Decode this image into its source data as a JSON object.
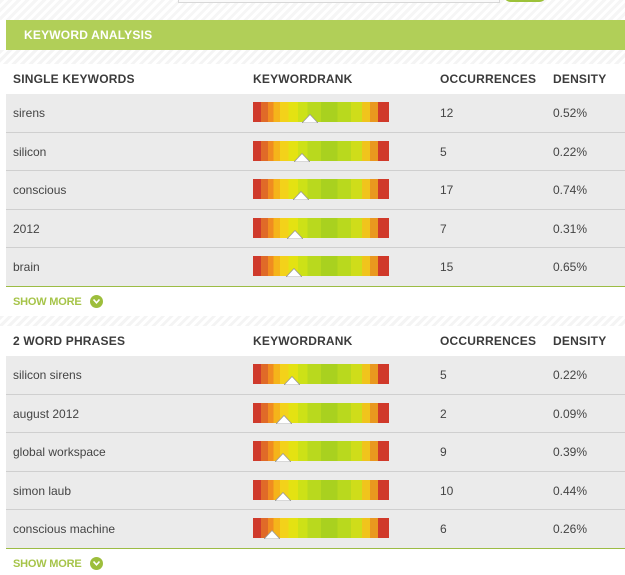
{
  "header": {
    "title": "KEYWORD ANALYSIS"
  },
  "colors": {
    "accent": "#b1cf58",
    "show_more": "#a6c449",
    "row_bg": "#ebebeb"
  },
  "sections": [
    {
      "columns": [
        "SINGLE KEYWORDS",
        "KEYWORDRANK",
        "OCCURRENCES",
        "DENSITY"
      ],
      "rows": [
        {
          "keyword": "sirens",
          "rank": 0.42,
          "occurrences": "12",
          "density": "0.52%"
        },
        {
          "keyword": "silicon",
          "rank": 0.36,
          "occurrences": "5",
          "density": "0.22%"
        },
        {
          "keyword": "conscious",
          "rank": 0.35,
          "occurrences": "17",
          "density": "0.74%"
        },
        {
          "keyword": "2012",
          "rank": 0.31,
          "occurrences": "7",
          "density": "0.31%"
        },
        {
          "keyword": "brain",
          "rank": 0.3,
          "occurrences": "15",
          "density": "0.65%"
        }
      ],
      "show_more": "SHOW MORE",
      "show_more_icon": "chevron-down-icon"
    },
    {
      "columns": [
        "2 WORD PHRASES",
        "KEYWORDRANK",
        "OCCURRENCES",
        "DENSITY"
      ],
      "rows": [
        {
          "keyword": "silicon sirens",
          "rank": 0.29,
          "occurrences": "5",
          "density": "0.22%"
        },
        {
          "keyword": "august 2012",
          "rank": 0.23,
          "occurrences": "2",
          "density": "0.09%"
        },
        {
          "keyword": "global workspace",
          "rank": 0.22,
          "occurrences": "9",
          "density": "0.39%"
        },
        {
          "keyword": "simon laub",
          "rank": 0.22,
          "occurrences": "10",
          "density": "0.44%"
        },
        {
          "keyword": "conscious machine",
          "rank": 0.14,
          "occurrences": "6",
          "density": "0.26%"
        }
      ],
      "show_more": "SHOW MORE",
      "show_more_icon": "chevron-down-icon"
    }
  ]
}
